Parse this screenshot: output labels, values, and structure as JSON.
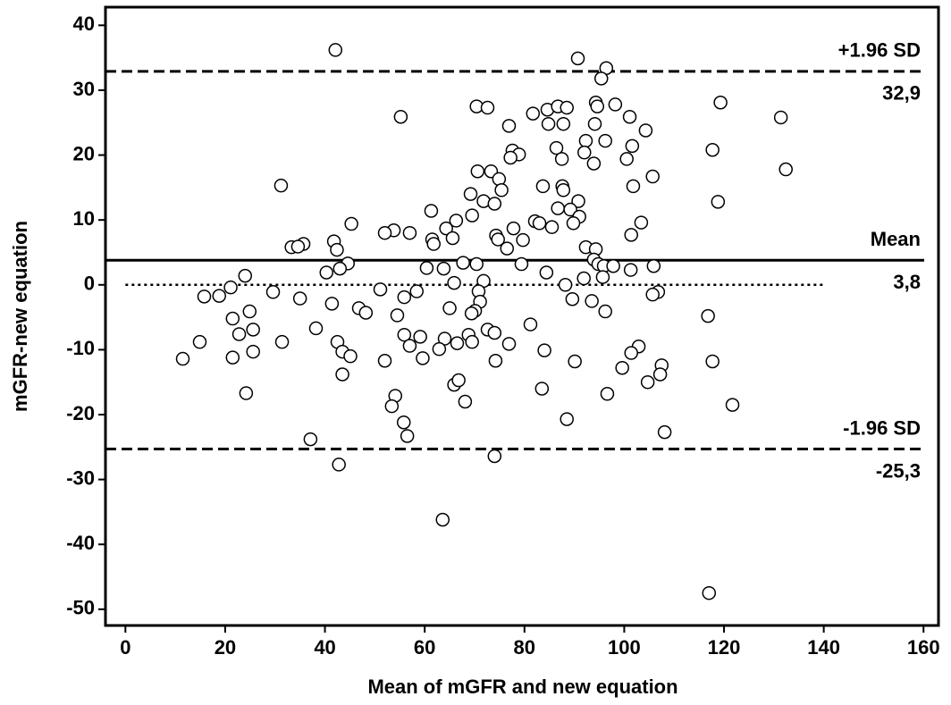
{
  "chart_data": {
    "type": "scatter",
    "x_label": "Mean of mGFR and new equation",
    "y_label": "mGFR-new equation",
    "xlim": [
      -4,
      163
    ],
    "ylim": [
      -52.5,
      42.8
    ],
    "xticks": [
      0,
      20,
      40,
      60,
      80,
      100,
      120,
      140,
      160
    ],
    "yticks": [
      -50,
      -40,
      -30,
      -20,
      -10,
      0,
      10,
      20,
      30,
      40
    ],
    "marker_color": "#000000",
    "lines": [
      {
        "label": "+1.96 SD",
        "value": 32.9,
        "value_label": "32,9",
        "style": "dashed"
      },
      {
        "label": "Mean",
        "value": 3.8,
        "value_label": "3,8",
        "style": "solid"
      },
      {
        "label": "-1.96 SD",
        "value": -25.3,
        "value_label": "-25,3",
        "style": "dashed"
      }
    ],
    "zero_line": {
      "value": 0,
      "x_range": [
        0,
        140
      ],
      "style": "dotted"
    },
    "x": [
      42.1,
      90.7,
      96.4,
      95.4,
      55.2,
      70.4,
      72.6,
      81.7,
      84.6,
      86.7,
      88.5,
      94.3,
      94.6,
      98.2,
      101.1,
      84.8,
      87.8,
      76.9,
      94.1,
      104.3,
      119.3,
      131.4,
      92.3,
      96.2,
      86.4,
      77.6,
      78.9,
      77.2,
      87.5,
      92.0,
      93.9,
      100.5,
      101.6,
      117.7,
      132.4,
      70.6,
      73.3,
      74.9,
      75.4,
      105.7,
      31.2,
      83.7,
      87.6,
      87.8,
      101.8,
      69.2,
      71.8,
      74.0,
      90.8,
      86.7,
      89.2,
      118.8,
      61.3,
      69.5,
      66.3,
      91.0,
      89.8,
      82.1,
      83.0,
      85.5,
      77.8,
      103.4,
      45.3,
      64.3,
      53.8,
      52.0,
      57.0,
      74.3,
      101.4,
      61.5,
      65.6,
      61.8,
      74.7,
      79.7,
      35.7,
      33.3,
      34.6,
      41.8,
      42.4,
      76.5,
      92.3,
      94.3,
      93.9,
      94.8,
      95.9,
      97.8,
      79.4,
      67.7,
      70.4,
      44.6,
      43.0,
      60.4,
      63.8,
      84.4,
      101.3,
      105.9,
      40.3,
      24.0,
      95.7,
      91.9,
      71.8,
      65.9,
      88.2,
      21.1,
      51.1,
      29.6,
      58.4,
      70.8,
      106.8,
      105.7,
      18.8,
      15.8,
      35.0,
      55.9,
      71.1,
      41.4,
      89.6,
      93.5,
      46.8,
      65.0,
      48.2,
      24.9,
      70.1,
      69.4,
      96.2,
      54.5,
      116.8,
      21.5,
      81.2,
      38.2,
      25.6,
      72.6,
      22.8,
      55.9,
      74.0,
      68.8,
      59.1,
      64.0,
      14.9,
      31.4,
      42.5,
      57.0,
      66.5,
      69.5,
      76.9,
      102.9,
      62.9,
      43.5,
      84.0,
      25.6,
      101.4,
      21.5,
      45.1,
      11.5,
      52.0,
      59.6,
      74.2,
      90.1,
      117.7,
      107.5,
      99.6,
      107.2,
      43.5,
      104.7,
      65.9,
      66.8,
      83.5,
      24.2,
      96.6,
      54.1,
      68.1,
      121.7,
      53.4,
      88.5,
      55.8,
      108.1,
      56.5,
      37.1,
      42.8,
      74.0,
      63.6,
      117.0
    ],
    "values": [
      36.2,
      34.9,
      33.4,
      31.8,
      25.9,
      27.5,
      27.3,
      26.4,
      27.0,
      27.5,
      27.3,
      28.1,
      27.5,
      27.8,
      25.9,
      24.8,
      24.8,
      24.5,
      24.8,
      23.8,
      28.1,
      25.8,
      22.2,
      22.2,
      21.1,
      20.7,
      20.1,
      19.6,
      19.4,
      20.4,
      18.7,
      19.4,
      21.4,
      20.8,
      17.8,
      17.5,
      17.5,
      16.3,
      14.6,
      16.7,
      15.3,
      15.2,
      15.2,
      14.6,
      15.2,
      14.0,
      12.9,
      12.5,
      12.9,
      11.8,
      11.6,
      12.8,
      11.4,
      10.7,
      9.9,
      10.5,
      9.5,
      9.8,
      9.5,
      8.9,
      8.7,
      9.6,
      9.4,
      8.7,
      8.4,
      8.0,
      8.0,
      7.6,
      7.7,
      7.0,
      7.2,
      6.3,
      7.0,
      6.9,
      6.3,
      5.8,
      5.9,
      6.7,
      5.4,
      5.6,
      5.8,
      5.5,
      3.9,
      3.2,
      2.9,
      2.9,
      3.2,
      3.4,
      3.2,
      3.3,
      2.5,
      2.6,
      2.5,
      1.9,
      2.3,
      2.9,
      1.9,
      1.4,
      1.2,
      1.0,
      0.6,
      0.3,
      0.0,
      -0.4,
      -0.7,
      -1.1,
      -1.0,
      -1.0,
      -1.1,
      -1.5,
      -1.7,
      -1.8,
      -2.1,
      -1.9,
      -2.6,
      -2.9,
      -2.2,
      -2.5,
      -3.6,
      -3.6,
      -4.3,
      -4.1,
      -4.0,
      -4.4,
      -4.1,
      -4.7,
      -4.8,
      -5.2,
      -6.1,
      -6.7,
      -6.9,
      -6.9,
      -7.6,
      -7.7,
      -7.4,
      -7.7,
      -8.0,
      -8.3,
      -8.8,
      -8.8,
      -8.8,
      -9.4,
      -9.0,
      -8.8,
      -9.1,
      -9.5,
      -9.9,
      -10.3,
      -10.1,
      -10.3,
      -10.5,
      -11.2,
      -11.0,
      -11.4,
      -11.7,
      -11.3,
      -11.7,
      -11.8,
      -11.8,
      -12.4,
      -12.8,
      -13.8,
      -13.8,
      -15.0,
      -15.4,
      -14.7,
      -16.0,
      -16.7,
      -16.8,
      -17.1,
      -18.0,
      -18.5,
      -18.7,
      -20.7,
      -21.2,
      -22.7,
      -23.3,
      -23.8,
      -27.7,
      -26.4,
      -36.2,
      -47.5
    ]
  }
}
